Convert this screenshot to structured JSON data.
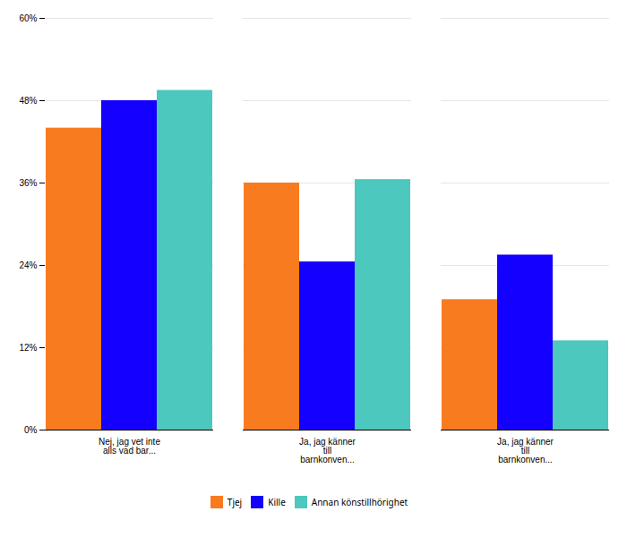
{
  "chart_data": {
    "type": "bar",
    "categories": [
      "Nej, jag vet inte\nalls vad bar...",
      "Ja, jag känner\ntill\nbarnkonven...",
      "Ja, jag känner\ntill\nbarnkonven..."
    ],
    "series": [
      {
        "name": "Tjej",
        "color": "#F97B20",
        "values": [
          0.44,
          0.36,
          0.19
        ]
      },
      {
        "name": "Kille",
        "color": "#1400FF",
        "values": [
          0.48,
          0.245,
          0.255
        ]
      },
      {
        "name": "Annan könstillhörighet",
        "color": "#4CC8BE",
        "values": [
          0.495,
          0.365,
          0.13
        ]
      }
    ],
    "ylim": [
      0,
      0.6
    ],
    "yticks": [
      {
        "value": 0.0,
        "label": "0%"
      },
      {
        "value": 0.12,
        "label": "12%"
      },
      {
        "value": 0.24,
        "label": "24%"
      },
      {
        "value": 0.36,
        "label": "36%"
      },
      {
        "value": 0.48,
        "label": "48%"
      },
      {
        "value": 0.6,
        "label": "60%"
      }
    ],
    "grid": true,
    "legend": "bottom"
  }
}
